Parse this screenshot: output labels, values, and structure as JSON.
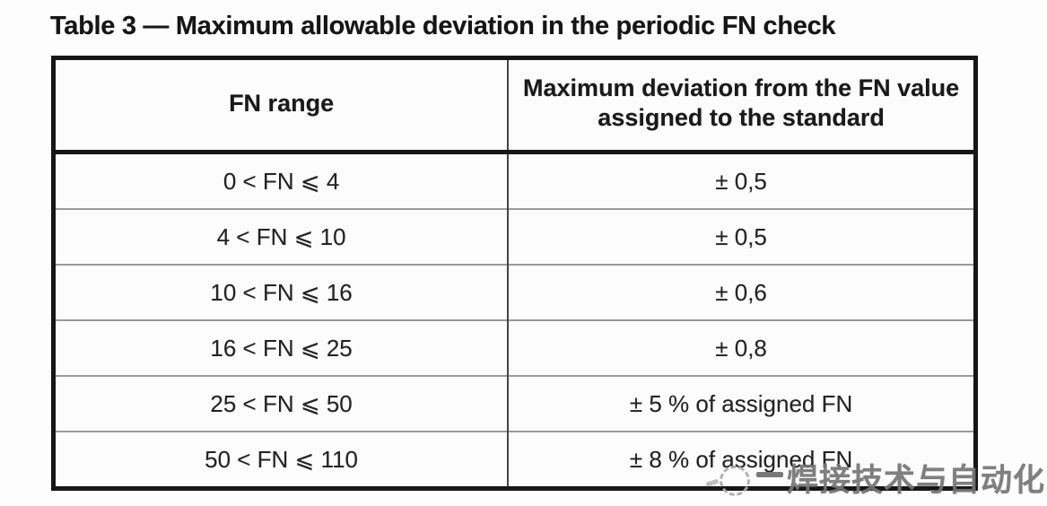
{
  "document": {
    "caption": "Table 3 — Maximum allowable deviation in the periodic FN check"
  },
  "table": {
    "columns": [
      "FN range",
      "Maximum deviation from the FN value assigned to the standard"
    ],
    "rows": [
      {
        "range": "0 < FN ⩽ 4",
        "deviation": "± 0,5"
      },
      {
        "range": "4 < FN ⩽ 10",
        "deviation": "± 0,5"
      },
      {
        "range": "10 < FN ⩽ 16",
        "deviation": "± 0,6"
      },
      {
        "range": "16 < FN ⩽ 25",
        "deviation": "± 0,8"
      },
      {
        "range": "25 < FN ⩽ 50",
        "deviation": "± 5 % of assigned FN"
      },
      {
        "range": "50 < FN ⩽ 110",
        "deviation": "± 8 % of assigned FN"
      }
    ]
  },
  "watermark": {
    "text": "焊接技术与自动化",
    "icon": "dashed-circle-logo",
    "color": "#757575"
  },
  "colors": {
    "page_background": "#fdfdfd",
    "table_border": "#161616",
    "row_separator": "#9a9a9a",
    "column_divider": "#454545",
    "text": "#1c1c1c",
    "watermark_gray": "#757575"
  }
}
